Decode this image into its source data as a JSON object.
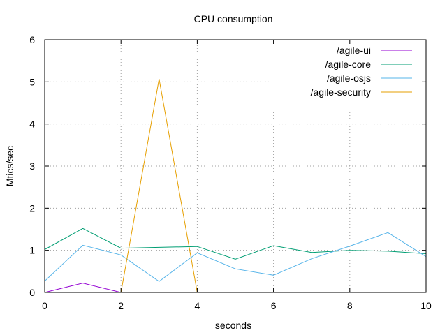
{
  "chart_data": {
    "type": "line",
    "title": "CPU consumption",
    "xlabel": "seconds",
    "ylabel": "Mtics/sec",
    "xlim": [
      0,
      10
    ],
    "ylim": [
      0,
      6
    ],
    "x_ticks": [
      "0",
      "2",
      "4",
      "6",
      "8",
      "10"
    ],
    "y_ticks": [
      "0",
      "1",
      "2",
      "3",
      "4",
      "5",
      "6"
    ],
    "grid": true,
    "legend_position": "top-right",
    "series": [
      {
        "name": "/agile-ui",
        "color": "#9400d3",
        "x": [
          0,
          1,
          2
        ],
        "y": [
          0,
          0.22,
          0
        ]
      },
      {
        "name": "/agile-core",
        "color": "#009e73",
        "x": [
          0,
          1,
          2,
          3,
          4,
          5,
          6,
          7,
          8,
          9,
          10
        ],
        "y": [
          1.02,
          1.52,
          1.05,
          1.07,
          1.09,
          0.79,
          1.11,
          0.95,
          1.0,
          0.98,
          0.92
        ]
      },
      {
        "name": "/agile-osjs",
        "color": "#56b4e9",
        "x": [
          0,
          1,
          2,
          3,
          4,
          5,
          6,
          7,
          8,
          9,
          10
        ],
        "y": [
          0.27,
          1.12,
          0.89,
          0.26,
          0.94,
          0.56,
          0.41,
          0.8,
          1.1,
          1.42,
          0.85
        ]
      },
      {
        "name": "/agile-security",
        "color": "#e69f00",
        "x": [
          2,
          3,
          4
        ],
        "y": [
          0,
          5.07,
          0
        ]
      }
    ]
  }
}
